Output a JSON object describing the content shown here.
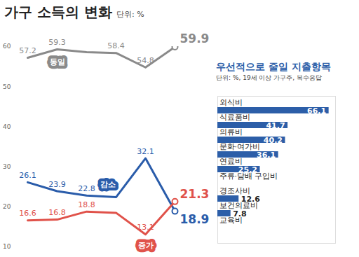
{
  "chart_data": [
    {
      "type": "line",
      "title": "가구 소득의 변화",
      "subtitle": "단위: %",
      "categories": [
        null,
        null,
        null,
        null,
        null,
        null
      ],
      "series": [
        {
          "name": "동일",
          "color": "#8a8a8a",
          "values": [
            57.2,
            59.3,
            58.6,
            58.4,
            54.8,
            59.9
          ],
          "value_labels": [
            "57.2",
            "59.3",
            null,
            "58.4",
            "54.8",
            "59.9"
          ]
        },
        {
          "name": "감소",
          "color": "#2a5caa",
          "values": [
            26.1,
            23.9,
            22.8,
            22.4,
            32.1,
            18.9
          ],
          "value_labels": [
            "26.1",
            "23.9",
            "22.8",
            null,
            "32.1",
            "18.9"
          ]
        },
        {
          "name": "증가",
          "color": "#e0524a",
          "values": [
            16.6,
            16.8,
            18.8,
            18.5,
            13.1,
            21.3
          ],
          "value_labels": [
            "16.6",
            "16.8",
            "18.8",
            null,
            "13.1",
            "21.3"
          ]
        }
      ],
      "ylim": [
        10,
        60
      ],
      "yticks": [
        10,
        20,
        30,
        40,
        50,
        60
      ],
      "grid": false,
      "data_labels": true,
      "tick_labels": "y"
    },
    {
      "type": "bar",
      "orientation": "horizontal",
      "title": "우선적으로 줄일 지출항목",
      "subtitle": "단위: %, 19세 이상 가구주, 복수응답",
      "categories": [
        "외식비",
        "식료품비",
        "의류비",
        "문화·여가비",
        "연료비",
        "주류·담배 구입비",
        "경조사비",
        "보건의료비",
        "교육비"
      ],
      "values": [
        66.1,
        41.7,
        40.2,
        36.1,
        25.2,
        null,
        12.6,
        7.8,
        null
      ],
      "color": "#2c5ea8",
      "xlim": [
        0,
        70
      ],
      "data_labels": true,
      "tick_labels": false
    }
  ]
}
